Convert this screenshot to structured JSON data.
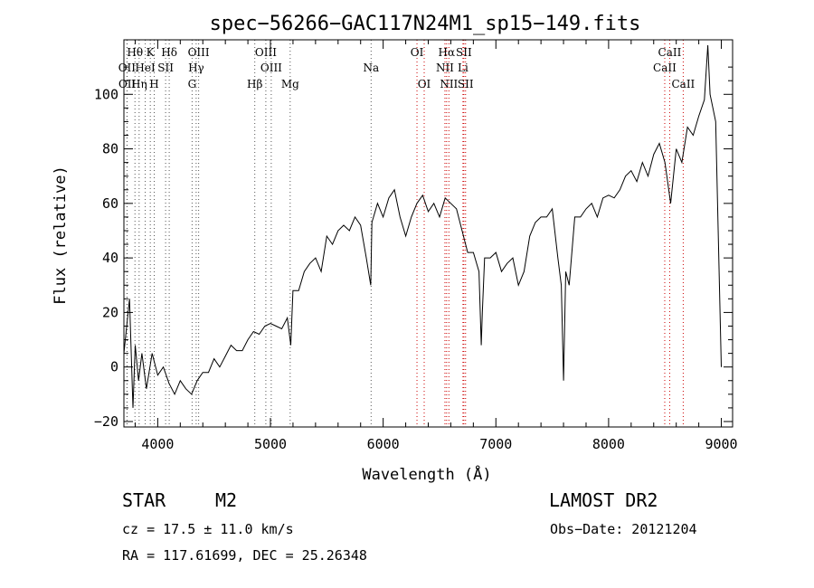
{
  "chart_data": {
    "type": "line",
    "title": "spec−56266−GAC117N24M1_sp15−149.fits",
    "xlabel": "Wavelength (Å)",
    "ylabel": "Flux (relative)",
    "xlim": [
      3700,
      9100
    ],
    "ylim": [
      -22,
      120
    ],
    "x_ticks": [
      4000,
      5000,
      6000,
      7000,
      8000,
      9000
    ],
    "y_ticks": [
      -20,
      0,
      20,
      40,
      60,
      80,
      100
    ],
    "grid": false,
    "series": [
      {
        "x": [
          3700,
          3750,
          3780,
          3800,
          3830,
          3860,
          3900,
          3950,
          4000,
          4050,
          4100,
          4150,
          4200,
          4250,
          4300,
          4350,
          4400,
          4450,
          4500,
          4550,
          4600,
          4650,
          4700,
          4750,
          4800,
          4850,
          4900,
          4950,
          5000,
          5050,
          5100,
          5150,
          5180,
          5200,
          5250,
          5300,
          5350,
          5400,
          5450,
          5500,
          5550,
          5600,
          5650,
          5700,
          5750,
          5800,
          5850,
          5890,
          5900,
          5950,
          6000,
          6050,
          6100,
          6150,
          6200,
          6250,
          6300,
          6350,
          6400,
          6450,
          6500,
          6550,
          6600,
          6650,
          6700,
          6750,
          6800,
          6850,
          6870,
          6880,
          6900,
          6950,
          7000,
          7050,
          7100,
          7150,
          7200,
          7250,
          7300,
          7350,
          7400,
          7450,
          7500,
          7550,
          7580,
          7600,
          7620,
          7650,
          7700,
          7750,
          7800,
          7850,
          7900,
          7950,
          8000,
          8050,
          8100,
          8150,
          8200,
          8250,
          8300,
          8350,
          8400,
          8450,
          8500,
          8550,
          8600,
          8650,
          8700,
          8750,
          8800,
          8850,
          8880,
          8900,
          8950,
          9000
        ],
        "y": [
          5,
          25,
          -15,
          8,
          -5,
          5,
          -8,
          5,
          -3,
          0,
          -6,
          -10,
          -5,
          -8,
          -10,
          -5,
          -2,
          -2,
          3,
          0,
          4,
          8,
          6,
          6,
          10,
          13,
          12,
          15,
          16,
          15,
          14,
          18,
          8,
          28,
          28,
          35,
          38,
          40,
          35,
          48,
          45,
          50,
          52,
          50,
          55,
          52,
          40,
          30,
          53,
          60,
          55,
          62,
          65,
          55,
          48,
          55,
          60,
          63,
          57,
          60,
          55,
          62,
          60,
          58,
          50,
          42,
          42,
          35,
          8,
          20,
          40,
          40,
          42,
          35,
          38,
          40,
          30,
          35,
          48,
          53,
          55,
          55,
          58,
          40,
          30,
          -5,
          35,
          30,
          55,
          55,
          58,
          60,
          55,
          62,
          63,
          62,
          65,
          70,
          72,
          68,
          75,
          70,
          78,
          82,
          75,
          60,
          80,
          75,
          88,
          85,
          92,
          98,
          118,
          100,
          90,
          0
        ]
      }
    ],
    "line_labels": {
      "row1": [
        {
          "text": "Hθ",
          "wl": 3798
        },
        {
          "text": "K",
          "wl": 3934
        },
        {
          "text": "Hδ",
          "wl": 4102
        },
        {
          "text": "OIII",
          "wl": 4363
        },
        {
          "text": "OIII",
          "wl": 4959
        },
        {
          "text": "OI",
          "wl": 6300
        },
        {
          "text": "Hα",
          "wl": 6563
        },
        {
          "text": "SII",
          "wl": 6716
        },
        {
          "text": "CaII",
          "wl": 8542
        }
      ],
      "row2": [
        {
          "text": "OII",
          "wl": 3727
        },
        {
          "text": "HeI",
          "wl": 3889
        },
        {
          "text": "SII",
          "wl": 4070
        },
        {
          "text": "Hγ",
          "wl": 4341
        },
        {
          "text": "OIII",
          "wl": 5007
        },
        {
          "text": "Na",
          "wl": 5893
        },
        {
          "text": "NII",
          "wl": 6548
        },
        {
          "text": "Li",
          "wl": 6708
        },
        {
          "text": "CaII",
          "wl": 8498
        }
      ],
      "row3": [
        {
          "text": "OII",
          "wl": 3729
        },
        {
          "text": "Hη",
          "wl": 3835
        },
        {
          "text": "H",
          "wl": 3969
        },
        {
          "text": "G",
          "wl": 4305
        },
        {
          "text": "Hβ",
          "wl": 4861
        },
        {
          "text": "Mg",
          "wl": 5175
        },
        {
          "text": "OI",
          "wl": 6364
        },
        {
          "text": "NII",
          "wl": 6583
        },
        {
          "text": "SII",
          "wl": 6731
        },
        {
          "text": "CaII",
          "wl": 8662
        }
      ]
    },
    "marker_lines": {
      "black": [
        3727,
        3729,
        3798,
        3835,
        3889,
        3934,
        3969,
        4070,
        4102,
        4305,
        4341,
        4363,
        4861,
        4959,
        5007,
        5175,
        5893
      ],
      "red": [
        6300,
        6364,
        6548,
        6563,
        6583,
        6708,
        6716,
        6731,
        8498,
        8542,
        8662
      ]
    }
  },
  "info": {
    "class": "STAR",
    "subclass": "M2",
    "survey": "LAMOST DR2",
    "redshift": "cz = 17.5 ± 11.0 km/s",
    "obs_date": "Obs−Date: 20121204",
    "coords": "RA = 117.61699, DEC =  25.26348"
  }
}
